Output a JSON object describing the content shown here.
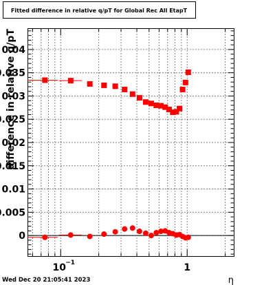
{
  "chart_data": {
    "type": "scatter",
    "title": "Fitted difference in relative q/pT for Global Rec All EtapT",
    "xlabel": "η",
    "ylabel": "difference in relative q/pT",
    "xscale": "log",
    "xlim": [
      0.055,
      2.35
    ],
    "ylim": [
      -0.0045,
      0.0445
    ],
    "x_ticks": [
      {
        "value": 0.1,
        "base": "10",
        "exp": "−1"
      },
      {
        "value": 1,
        "base": "1",
        "exp": ""
      }
    ],
    "y_ticks": [
      {
        "value": 0,
        "label": "0"
      },
      {
        "value": 0.005,
        "label": "0.005"
      },
      {
        "value": 0.01,
        "label": "0.01"
      },
      {
        "value": 0.015,
        "label": "0.015"
      },
      {
        "value": 0.02,
        "label": "0.02"
      },
      {
        "value": 0.025,
        "label": "0.025"
      },
      {
        "value": 0.03,
        "label": "0.03"
      },
      {
        "value": 0.035,
        "label": "0.035"
      },
      {
        "value": 0.04,
        "label": "0.04"
      }
    ],
    "grid": true,
    "timestamp": "Wed Dec 20 21:05:41 2023",
    "series": [
      {
        "marker": "square",
        "color": "#ff0000",
        "points": [
          {
            "x": 0.075,
            "y": 0.0334,
            "xerr": [
              0.055,
              0.095
            ]
          },
          {
            "x": 0.12,
            "y": 0.0333,
            "xerr": [
              0.097,
              0.147
            ]
          },
          {
            "x": 0.17,
            "y": 0.0326
          },
          {
            "x": 0.22,
            "y": 0.0323
          },
          {
            "x": 0.27,
            "y": 0.0321
          },
          {
            "x": 0.32,
            "y": 0.0314
          },
          {
            "x": 0.37,
            "y": 0.0304
          },
          {
            "x": 0.42,
            "y": 0.0296
          },
          {
            "x": 0.47,
            "y": 0.0287
          },
          {
            "x": 0.52,
            "y": 0.0284
          },
          {
            "x": 0.57,
            "y": 0.028
          },
          {
            "x": 0.62,
            "y": 0.0279
          },
          {
            "x": 0.67,
            "y": 0.0276
          },
          {
            "x": 0.72,
            "y": 0.0271
          },
          {
            "x": 0.77,
            "y": 0.0265
          },
          {
            "x": 0.82,
            "y": 0.0266
          },
          {
            "x": 0.87,
            "y": 0.0273
          },
          {
            "x": 0.92,
            "y": 0.0314
          },
          {
            "x": 0.97,
            "y": 0.0329
          },
          {
            "x": 1.02,
            "y": 0.0351
          }
        ]
      },
      {
        "marker": "circle",
        "color": "#ff0000",
        "points": [
          {
            "x": 0.075,
            "y": -0.0004,
            "xerr": [
              0.055,
              0.095
            ]
          },
          {
            "x": 0.12,
            "y": 0.0001,
            "xerr": [
              0.097,
              0.147
            ]
          },
          {
            "x": 0.17,
            "y": -0.0002
          },
          {
            "x": 0.22,
            "y": 0.0003
          },
          {
            "x": 0.27,
            "y": 0.0008
          },
          {
            "x": 0.32,
            "y": 0.0014
          },
          {
            "x": 0.37,
            "y": 0.0016
          },
          {
            "x": 0.42,
            "y": 0.0009
          },
          {
            "x": 0.47,
            "y": 0.0005
          },
          {
            "x": 0.52,
            "y": 0.0
          },
          {
            "x": 0.57,
            "y": 0.0006
          },
          {
            "x": 0.62,
            "y": 0.0009
          },
          {
            "x": 0.67,
            "y": 0.001
          },
          {
            "x": 0.72,
            "y": 0.0006
          },
          {
            "x": 0.77,
            "y": 0.0004
          },
          {
            "x": 0.82,
            "y": 0.0001
          },
          {
            "x": 0.87,
            "y": 0.0002
          },
          {
            "x": 0.92,
            "y": -0.0002
          },
          {
            "x": 0.97,
            "y": -0.0005
          },
          {
            "x": 1.02,
            "y": -0.0004
          }
        ]
      }
    ]
  }
}
